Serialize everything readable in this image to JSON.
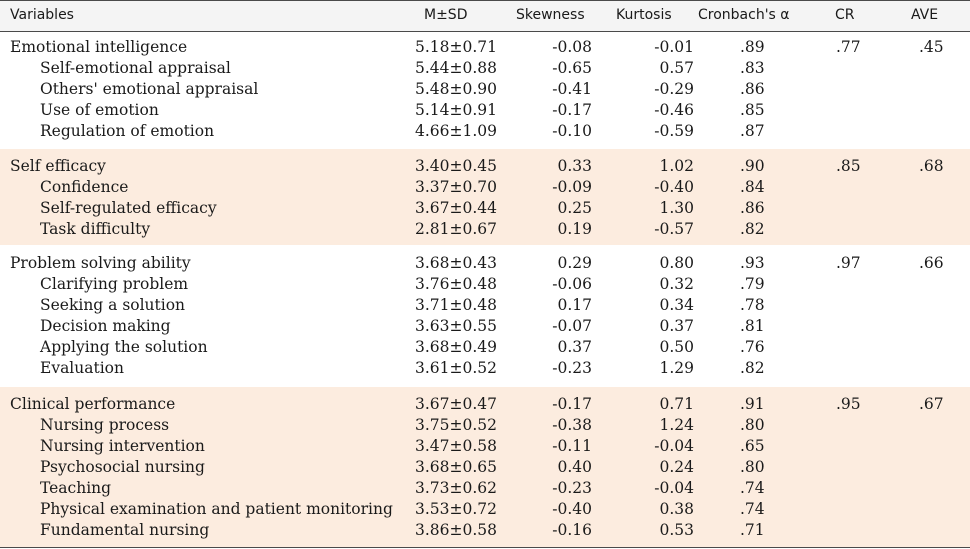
{
  "headers": {
    "variables": "Variables",
    "msd": "M±SD",
    "skewness": "Skewness",
    "kurtosis": "Kurtosis",
    "cronbach": "Cronbach's α",
    "cr": "CR",
    "ave": "AVE"
  },
  "groups": [
    {
      "rows": [
        {
          "label": "Emotional intelligence",
          "msd": "5.18±0.71",
          "skew": "-0.08",
          "kurt": "-0.01",
          "alpha": ".89",
          "cr": ".77",
          "ave": ".45"
        },
        {
          "label": "Self-emotional appraisal",
          "msd": "5.44±0.88",
          "skew": "-0.65",
          "kurt": "0.57",
          "alpha": ".83"
        },
        {
          "label": "Others' emotional appraisal",
          "msd": "5.48±0.90",
          "skew": "-0.41",
          "kurt": "-0.29",
          "alpha": ".86"
        },
        {
          "label": "Use of emotion",
          "msd": "5.14±0.91",
          "skew": "-0.17",
          "kurt": "-0.46",
          "alpha": ".85"
        },
        {
          "label": "Regulation of emotion",
          "msd": "4.66±1.09",
          "skew": "-0.10",
          "kurt": "-0.59",
          "alpha": ".87"
        }
      ]
    },
    {
      "rows": [
        {
          "label": "Self efficacy",
          "msd": "3.40±0.45",
          "skew": "0.33",
          "kurt": "1.02",
          "alpha": ".90",
          "cr": ".85",
          "ave": ".68"
        },
        {
          "label": "Confidence",
          "msd": "3.37±0.70",
          "skew": "-0.09",
          "kurt": "-0.40",
          "alpha": ".84"
        },
        {
          "label": "Self-regulated efficacy",
          "msd": "3.67±0.44",
          "skew": "0.25",
          "kurt": "1.30",
          "alpha": ".86"
        },
        {
          "label": "Task difficulty",
          "msd": "2.81±0.67",
          "skew": "0.19",
          "kurt": "-0.57",
          "alpha": ".82"
        }
      ]
    },
    {
      "rows": [
        {
          "label": "Problem solving ability",
          "msd": "3.68±0.43",
          "skew": "0.29",
          "kurt": "0.80",
          "alpha": ".93",
          "cr": ".97",
          "ave": ".66"
        },
        {
          "label": "Clarifying problem",
          "msd": "3.76±0.48",
          "skew": "-0.06",
          "kurt": "0.32",
          "alpha": ".79"
        },
        {
          "label": "Seeking a solution",
          "msd": "3.71±0.48",
          "skew": "0.17",
          "kurt": "0.34",
          "alpha": ".78"
        },
        {
          "label": "Decision making",
          "msd": "3.63±0.55",
          "skew": "-0.07",
          "kurt": "0.37",
          "alpha": ".81"
        },
        {
          "label": "Applying the solution",
          "msd": "3.68±0.49",
          "skew": "0.37",
          "kurt": "0.50",
          "alpha": ".76"
        },
        {
          "label": "Evaluation",
          "msd": "3.61±0.52",
          "skew": "-0.23",
          "kurt": "1.29",
          "alpha": ".82"
        }
      ]
    },
    {
      "rows": [
        {
          "label": "Clinical performance",
          "msd": "3.67±0.47",
          "skew": "-0.17",
          "kurt": "0.71",
          "alpha": ".91",
          "cr": ".95",
          "ave": ".67"
        },
        {
          "label": "Nursing process",
          "msd": "3.75±0.52",
          "skew": "-0.38",
          "kurt": "1.24",
          "alpha": ".80"
        },
        {
          "label": "Nursing intervention",
          "msd": "3.47±0.58",
          "skew": "-0.11",
          "kurt": "-0.04",
          "alpha": ".65"
        },
        {
          "label": "Psychosocial nursing",
          "msd": "3.68±0.65",
          "skew": "0.40",
          "kurt": "0.24",
          "alpha": ".80"
        },
        {
          "label": "Teaching",
          "msd": "3.73±0.62",
          "skew": "-0.23",
          "kurt": "-0.04",
          "alpha": ".74"
        },
        {
          "label": "Physical examination and patient monitoring",
          "msd": "3.53±0.72",
          "skew": "-0.40",
          "kurt": "0.38",
          "alpha": ".74"
        },
        {
          "label": "Fundamental nursing",
          "msd": "3.86±0.58",
          "skew": "-0.16",
          "kurt": "0.53",
          "alpha": ".71"
        }
      ]
    }
  ]
}
